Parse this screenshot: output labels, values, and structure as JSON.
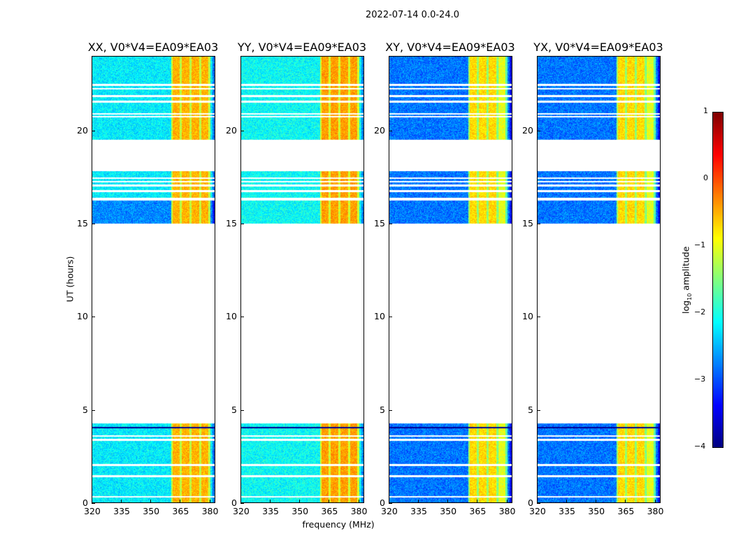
{
  "chart_data": {
    "type": "heatmap",
    "title": "2022-07-14 0.0-24.0",
    "xlabel": "frequency (MHz)",
    "ylabel": "UT (hours)",
    "xlim": [
      320,
      383
    ],
    "ylim": [
      0,
      24
    ],
    "xticks": [
      "320",
      "335",
      "350",
      "365",
      "380"
    ],
    "xtick_values": [
      320,
      335,
      350,
      365,
      380
    ],
    "yticks": [
      "0",
      "5",
      "10",
      "15",
      "20"
    ],
    "ytick_values": [
      0,
      5,
      10,
      15,
      20
    ],
    "colorbar": {
      "label_prefix": "log",
      "label_sub": "10",
      "label_suffix": " amplitude",
      "range": [
        -4,
        1
      ],
      "ticks": [
        "1",
        "0",
        "−1",
        "−2",
        "−3",
        "−4"
      ],
      "tick_values": [
        1,
        0,
        -1,
        -2,
        -3,
        -4
      ],
      "colormap": "jet"
    },
    "data_segments_hours": [
      [
        0,
        4.35
      ],
      [
        15.05,
        16.3
      ],
      [
        16.45,
        17.85
      ],
      [
        19.55,
        24
      ]
    ],
    "gap_lines_hours": [
      0.4,
      1.5,
      2.1,
      3.45,
      3.65,
      16.8,
      17.1,
      17.3,
      17.5,
      20.8,
      20.95,
      21.6,
      21.9,
      22.3,
      22.5
    ],
    "rfi_band_mhz": [
      360,
      380
    ],
    "panels": [
      {
        "title": "XX, V0*V4=EA09*EA03",
        "base_level": -2.2,
        "band_level": -0.5
      },
      {
        "title": "YY, V0*V4=EA09*EA03",
        "base_level": -2.1,
        "band_level": -0.4
      },
      {
        "title": "XY, V0*V4=EA09*EA03",
        "base_level": -2.8,
        "band_level": -0.7
      },
      {
        "title": "YX, V0*V4=EA09*EA03",
        "base_level": -2.8,
        "band_level": -0.7
      }
    ]
  }
}
